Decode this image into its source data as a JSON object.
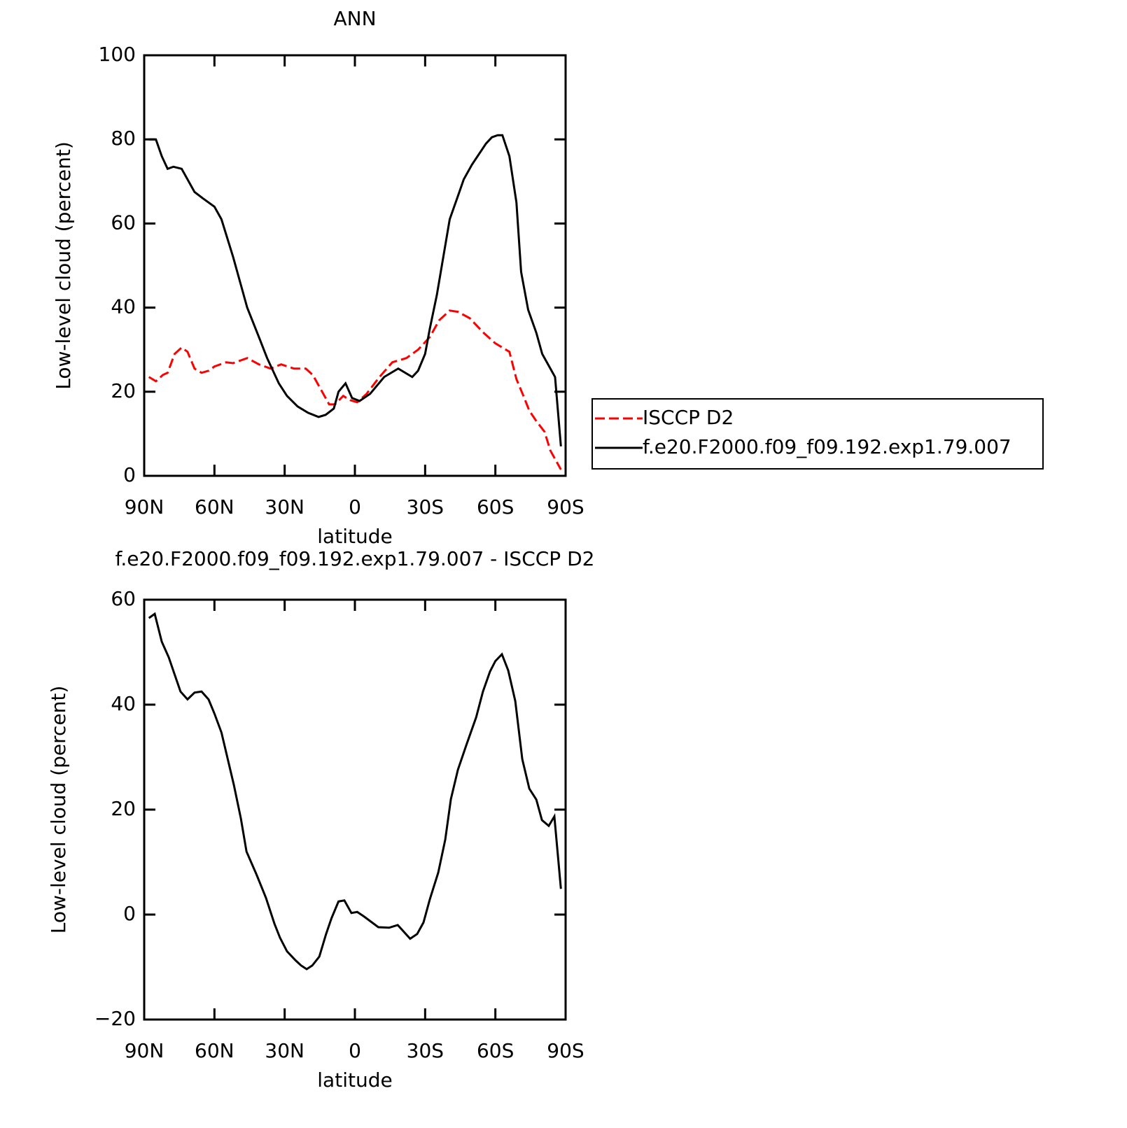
{
  "chart_data": [
    {
      "type": "line",
      "title": "ANN",
      "xlabel": "latitude",
      "ylabel": "Low-level cloud (percent)",
      "xlim": [
        90,
        -90
      ],
      "ylim": [
        0,
        100
      ],
      "xticks": [
        {
          "value": 90,
          "label": "90N"
        },
        {
          "value": 60,
          "label": "60N"
        },
        {
          "value": 30,
          "label": "30N"
        },
        0,
        {
          "value": -30,
          "label": "30S"
        },
        {
          "value": -60,
          "label": "60S"
        },
        {
          "value": -90,
          "label": "90S"
        }
      ],
      "yticks": [
        0,
        20,
        40,
        60,
        80,
        100
      ],
      "legend": "outside-right",
      "series": [
        {
          "name": "ISCCP D2",
          "color": "#ff0000",
          "dash": true,
          "x": [
            88,
            85,
            82,
            80,
            77,
            74,
            71.5,
            68.5,
            65.5,
            62.5,
            60,
            55,
            52,
            46,
            41,
            36,
            31.5,
            26,
            21,
            18,
            15,
            11,
            8.5,
            5,
            2,
            -1,
            -5,
            -10.5,
            -16,
            -22,
            -27,
            -32,
            -36,
            -40.5,
            -44,
            -49,
            -55,
            -60,
            -66,
            -69,
            -72,
            -74.5,
            -77.5,
            -81,
            -83.5,
            -88
          ],
          "values": [
            23.5,
            22.5,
            24,
            24.5,
            29,
            30.5,
            29.5,
            25.5,
            24.5,
            25,
            26,
            27,
            26.8,
            28,
            26.5,
            25.5,
            26.5,
            25.5,
            25.5,
            24,
            21,
            17,
            17,
            19,
            18,
            17.5,
            19.5,
            23.5,
            27,
            28,
            30,
            33,
            37,
            39.3,
            39,
            37.5,
            34,
            31.5,
            29.5,
            23,
            19,
            15.5,
            13,
            10.5,
            6,
            1.5
          ]
        },
        {
          "name": "f.e20.F2000.f09_f09.192.exp1.79.007",
          "color": "#000000",
          "dash": false,
          "x": [
            88,
            85,
            82.5,
            80,
            77.5,
            74,
            68.5,
            65,
            60,
            57,
            52,
            46,
            41,
            37.5,
            32.5,
            29,
            24.5,
            20,
            15.5,
            12.5,
            9,
            7,
            4,
            1.2,
            -2,
            -6.5,
            -12.5,
            -18.5,
            -24.5,
            -27,
            -30,
            -32,
            -35,
            -40.5,
            -44.3,
            -46.5,
            -50,
            -56,
            -58.5,
            -61,
            -63,
            -66,
            -69,
            -71,
            -74,
            -77.5,
            -80,
            -83.5,
            -85.5,
            -88
          ],
          "values": [
            80,
            80,
            76,
            73,
            73.5,
            73,
            67.5,
            66,
            64,
            61,
            52,
            40,
            33,
            28,
            22,
            19,
            16.5,
            15,
            14,
            14.5,
            16,
            20,
            22,
            18.5,
            17.8,
            19.5,
            23.5,
            25.5,
            23.5,
            25,
            29,
            35,
            43,
            61,
            67,
            70.5,
            74,
            79,
            80.5,
            81,
            81,
            76,
            65,
            48.5,
            39.5,
            34,
            29,
            25.5,
            23.5,
            7
          ]
        }
      ]
    },
    {
      "type": "line",
      "title": "f.e20.F2000.f09_f09.192.exp1.79.007 - ISCCP D2",
      "xlabel": "latitude",
      "ylabel": "Low-level cloud (percent)",
      "xlim": [
        90,
        -90
      ],
      "ylim": [
        -20,
        60
      ],
      "xticks": [
        {
          "value": 90,
          "label": "90N"
        },
        {
          "value": 60,
          "label": "60N"
        },
        {
          "value": 30,
          "label": "30N"
        },
        0,
        {
          "value": -30,
          "label": "30S"
        },
        {
          "value": -60,
          "label": "60S"
        },
        {
          "value": -90,
          "label": "90S"
        }
      ],
      "yticks": [
        {
          "value": -20,
          "label": "−20"
        },
        0,
        20,
        40,
        60
      ],
      "series": [
        {
          "color": "#000000",
          "dash": false,
          "x": [
            88,
            85.5,
            82.5,
            79.5,
            74.5,
            71.5,
            68.5,
            65.5,
            62.5,
            60,
            57,
            51.7,
            48.7,
            46.3,
            42,
            38,
            34.4,
            32,
            29,
            25.4,
            23,
            20.6,
            18.2,
            15.2,
            12.3,
            10,
            7,
            4.5,
            1.5,
            -1,
            -4,
            -10,
            -14.6,
            -18.3,
            -23.6,
            -26.6,
            -29.3,
            -32,
            -35.6,
            -38.6,
            -41,
            -44,
            -47.6,
            -51.8,
            -54.7,
            -57.7,
            -60,
            -62.8,
            -65.5,
            -68.5,
            -71.5,
            -74.5,
            -77.5,
            -79.9,
            -82.8,
            -85.2,
            -88
          ],
          "values": [
            56.5,
            57.3,
            52,
            49,
            42.5,
            41,
            42.3,
            42.5,
            41,
            38.3,
            34.7,
            24.7,
            18.3,
            12,
            7.6,
            3.2,
            -1.7,
            -4.4,
            -7,
            -8.7,
            -9.7,
            -10.4,
            -9.7,
            -8,
            -3.7,
            -0.7,
            2.5,
            2.7,
            0.3,
            0.5,
            -0.4,
            -2.4,
            -2.5,
            -2,
            -4.6,
            -3.7,
            -1.5,
            2.9,
            8,
            14.3,
            22,
            27.6,
            32.3,
            37.6,
            42.5,
            46.3,
            48.3,
            49.6,
            46.5,
            40.7,
            29.6,
            24,
            21.9,
            18,
            16.9,
            18.7,
            4.9
          ]
        }
      ]
    }
  ]
}
